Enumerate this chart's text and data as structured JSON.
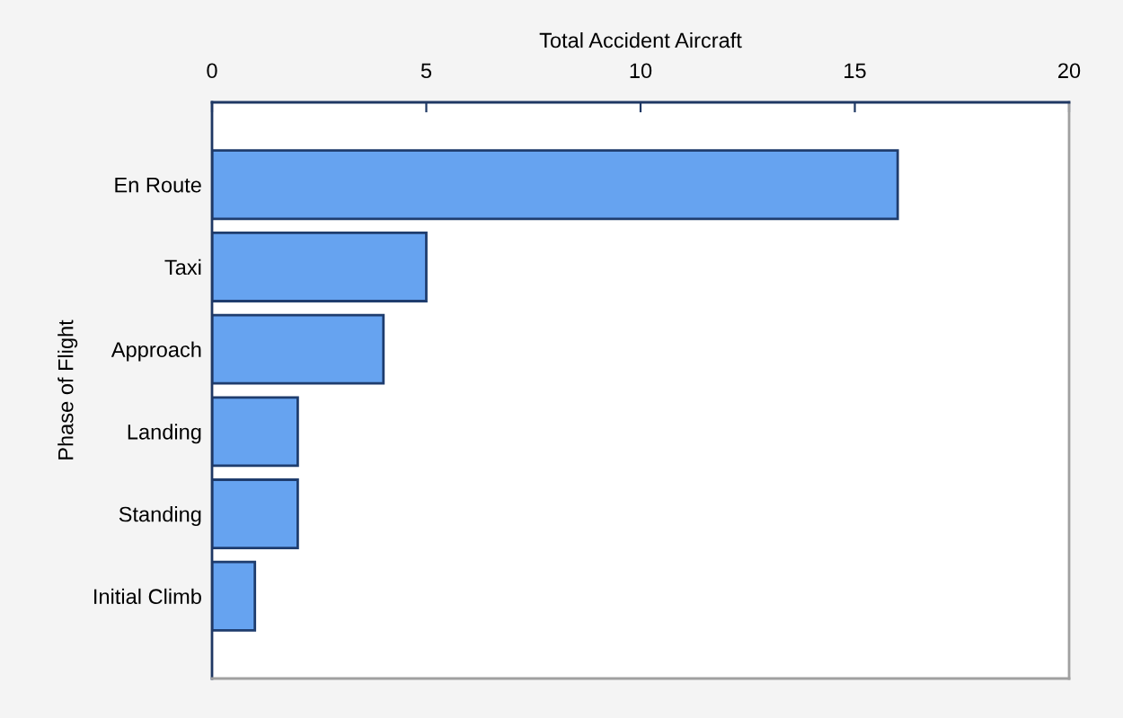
{
  "chart_data": {
    "type": "bar",
    "orientation": "horizontal",
    "xlabel": "Total Accident Aircraft",
    "ylabel": "Phase of Flight",
    "categories": [
      "En Route",
      "Taxi",
      "Approach",
      "Landing",
      "Standing",
      "Initial Climb"
    ],
    "values": [
      16,
      5,
      4,
      2,
      2,
      1
    ],
    "color": "#66a3f0",
    "xlim": [
      0,
      20
    ],
    "xticks": [
      0,
      5,
      10,
      15,
      20
    ],
    "grid": false
  }
}
